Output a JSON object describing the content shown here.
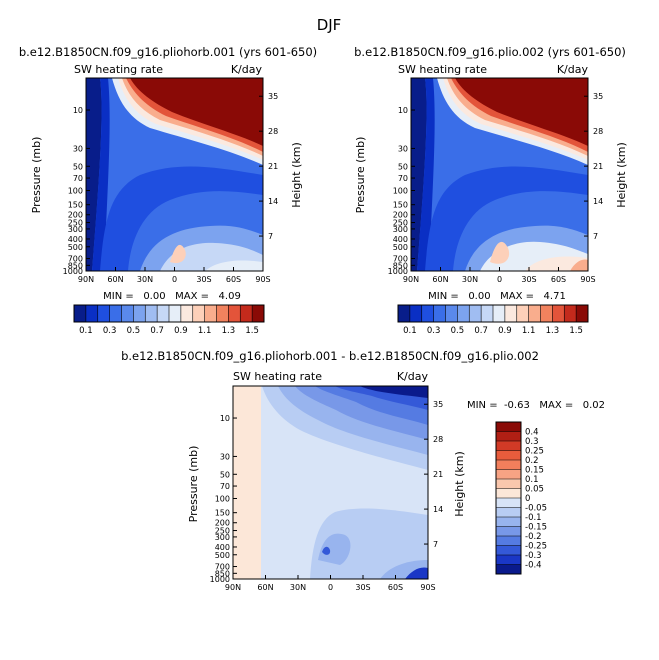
{
  "figure": {
    "season": "DJF"
  },
  "chart_data": [
    {
      "type": "heatmap",
      "title": "b.e12.B1850CN.f09_g16.pliohorb.001 (yrs 601-650)",
      "field": "SW heating rate",
      "units": "K/day",
      "xlabel": "",
      "ylabel": "Pressure (mb)",
      "ylabel_right": "Height (km)",
      "x_ticks": [
        "90N",
        "60N",
        "30N",
        "0",
        "30S",
        "60S",
        "90S"
      ],
      "y_ticks": [
        "10",
        "30",
        "50",
        "70",
        "100",
        "150",
        "200",
        "250",
        "300",
        "400",
        "500",
        "700",
        "850",
        "1000"
      ],
      "height_ticks": [
        "35",
        "28",
        "21",
        "14",
        "7"
      ],
      "stats_text": "MIN =   0.00   MAX =   4.09",
      "min": 0.0,
      "max": 4.09,
      "colorbar_labels": [
        "0.1",
        "0.3",
        "0.5",
        "0.7",
        "0.9",
        "1.1",
        "1.3",
        "1.5"
      ],
      "contour_levels": [
        0.1,
        0.2,
        0.3,
        0.4,
        0.5,
        0.6,
        0.7,
        0.8,
        0.9,
        1.0,
        1.1,
        1.2,
        1.3,
        1.4,
        1.5
      ],
      "colors": [
        "#081d8a",
        "#0a2fc4",
        "#1f4fe0",
        "#3a6ee8",
        "#5a89ec",
        "#7ca3ef",
        "#a0bdf2",
        "#c6d8f6",
        "#e6eef8",
        "#fbe9df",
        "#fdd0b9",
        "#f9ad8d",
        "#f1825e",
        "#e3543a",
        "#c42a1c",
        "#8a0a06"
      ]
    },
    {
      "type": "heatmap",
      "title": "b.e12.B1850CN.f09_g16.plio.002 (yrs 601-650)",
      "field": "SW heating rate",
      "units": "K/day",
      "xlabel": "",
      "ylabel": "Pressure (mb)",
      "ylabel_right": "Height (km)",
      "x_ticks": [
        "90N",
        "60N",
        "30N",
        "0",
        "30S",
        "60S",
        "90S"
      ],
      "y_ticks": [
        "10",
        "30",
        "50",
        "70",
        "100",
        "150",
        "200",
        "250",
        "300",
        "400",
        "500",
        "700",
        "850",
        "1000"
      ],
      "height_ticks": [
        "35",
        "28",
        "21",
        "14",
        "7"
      ],
      "stats_text": "MIN =   0.00   MAX =   4.71",
      "min": 0.0,
      "max": 4.71,
      "colorbar_labels": [
        "0.1",
        "0.3",
        "0.5",
        "0.7",
        "0.9",
        "1.1",
        "1.3",
        "1.5"
      ],
      "contour_levels": [
        0.1,
        0.2,
        0.3,
        0.4,
        0.5,
        0.6,
        0.7,
        0.8,
        0.9,
        1.0,
        1.1,
        1.2,
        1.3,
        1.4,
        1.5
      ],
      "colors": [
        "#081d8a",
        "#0a2fc4",
        "#1f4fe0",
        "#3a6ee8",
        "#5a89ec",
        "#7ca3ef",
        "#a0bdf2",
        "#c6d8f6",
        "#e6eef8",
        "#fbe9df",
        "#fdd0b9",
        "#f9ad8d",
        "#f1825e",
        "#e3543a",
        "#c42a1c",
        "#8a0a06"
      ]
    },
    {
      "type": "heatmap",
      "title": "b.e12.B1850CN.f09_g16.pliohorb.001 - b.e12.B1850CN.f09_g16.plio.002",
      "field": "SW heating rate",
      "units": "K/day",
      "xlabel": "",
      "ylabel": "Pressure (mb)",
      "ylabel_right": "Height (km)",
      "x_ticks": [
        "90N",
        "60N",
        "30N",
        "0",
        "30S",
        "60S",
        "90S"
      ],
      "y_ticks": [
        "10",
        "30",
        "50",
        "70",
        "100",
        "150",
        "200",
        "250",
        "300",
        "400",
        "500",
        "700",
        "850",
        "1000"
      ],
      "height_ticks": [
        "35",
        "28",
        "21",
        "14",
        "7"
      ],
      "stats_text": "MIN =  -0.63   MAX =   0.02",
      "min": -0.63,
      "max": 0.02,
      "colorbar_labels": [
        "0.4",
        "0.3",
        "0.25",
        "0.2",
        "0.15",
        "0.1",
        "0.05",
        "0",
        "-0.05",
        "-0.1",
        "-0.15",
        "-0.2",
        "-0.25",
        "-0.3",
        "-0.4"
      ],
      "colors": [
        "#8a0a06",
        "#b11f14",
        "#d23a26",
        "#e85c3c",
        "#f27f5c",
        "#f7a384",
        "#fac7ad",
        "#fce7d8",
        "#d8e4f7",
        "#b8cdf3",
        "#98b4ee",
        "#7898e8",
        "#557be2",
        "#3459d8",
        "#1a37c6",
        "#0a1a8c"
      ]
    }
  ]
}
